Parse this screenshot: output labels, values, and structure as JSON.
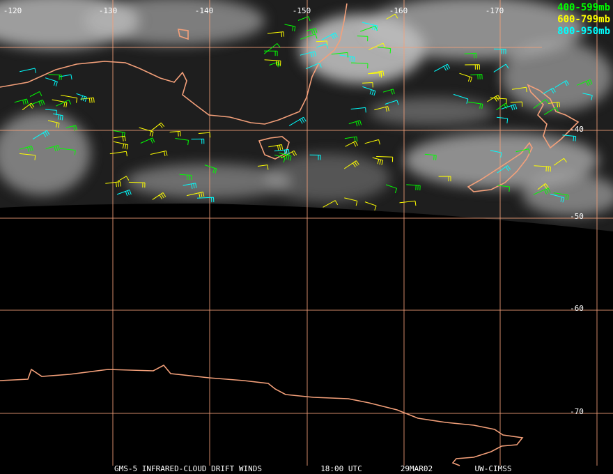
{
  "map": {
    "longitude_labels": [
      "-120",
      "-130",
      "-140",
      "-150",
      "-160",
      "-170"
    ],
    "latitude_labels": [
      "-40",
      "-50",
      "-60",
      "-70"
    ],
    "legend": [
      {
        "label": "400-599mb",
        "color": "#00ff00"
      },
      {
        "label": "600-799mb",
        "color": "#ffff00"
      },
      {
        "label": "800-950mb",
        "color": "#00ffff"
      }
    ],
    "footer": [
      "GMS-5 INFRARED-CLOUD DRIFT WINDS",
      "18:00 UTC",
      "29MAR02",
      "UW-CIMSS"
    ]
  }
}
